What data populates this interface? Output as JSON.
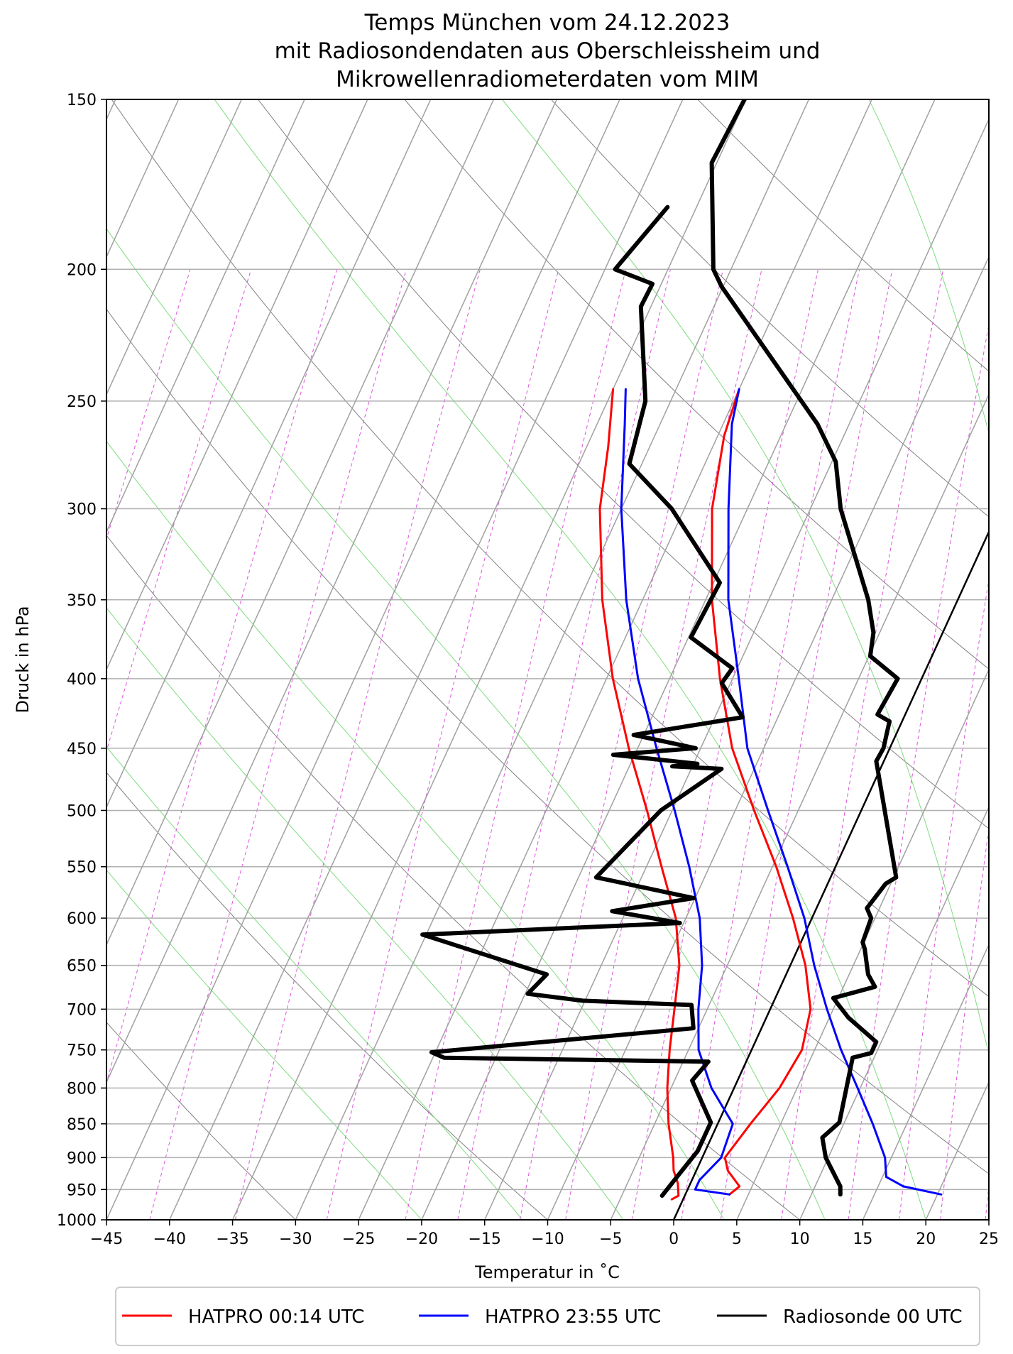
{
  "chart_data": {
    "type": "line",
    "title_lines": [
      "Temps München vom 24.12.2023",
      "mit Radiosondendaten aus Oberschleissheim und",
      "Mikrowellenradiometerdaten vom MIM"
    ],
    "xlabel": "Temperatur in ˚C",
    "ylabel": "Druck in hPa",
    "xlim": [
      -45,
      25
    ],
    "ylim": [
      1000,
      150
    ],
    "y_scale": "log",
    "skew_t": true,
    "grid": true,
    "xticks": [
      -45,
      -40,
      -35,
      -30,
      -25,
      -20,
      -15,
      -10,
      -5,
      0,
      5,
      10,
      15,
      20,
      25
    ],
    "yticks": [
      150,
      200,
      250,
      300,
      350,
      400,
      450,
      500,
      550,
      600,
      650,
      700,
      750,
      800,
      850,
      900,
      950,
      1000
    ],
    "legend_position": "bottom-outside",
    "reference_line": {
      "points": [
        [
          0,
          1000
        ],
        [
          25,
          312
        ]
      ],
      "color": "#000000"
    },
    "series": [
      {
        "name": "HATPRO 00:14 UTC",
        "color": "#ff0000",
        "profiles": [
          [
            [
              -35,
              245
            ],
            [
              -34.3,
              255
            ],
            [
              -33.3,
              270
            ],
            [
              -31.7,
              300
            ],
            [
              -28.2,
              350
            ],
            [
              -24.5,
              400
            ],
            [
              -20.7,
              450
            ],
            [
              -17,
              500
            ],
            [
              -13.8,
              550
            ],
            [
              -10.8,
              600
            ],
            [
              -8.8,
              650
            ],
            [
              -7.6,
              700
            ],
            [
              -6.5,
              750
            ],
            [
              -5.3,
              800
            ],
            [
              -3.9,
              850
            ],
            [
              -2.3,
              900
            ],
            [
              -1.8,
              920
            ],
            [
              -1.0,
              940
            ],
            [
              -0.5,
              960
            ],
            [
              -0.9,
              966
            ]
          ],
          [
            [
              -25,
              245
            ],
            [
              -24.5,
              265
            ],
            [
              -22.8,
              300
            ],
            [
              -19.5,
              350
            ],
            [
              -16,
              400
            ],
            [
              -12.5,
              450
            ],
            [
              -8.5,
              500
            ],
            [
              -4.7,
              550
            ],
            [
              -1.5,
              600
            ],
            [
              1.2,
              650
            ],
            [
              3.2,
              700
            ],
            [
              4.0,
              750
            ],
            [
              3.6,
              800
            ],
            [
              2.6,
              850
            ],
            [
              1.8,
              900
            ],
            [
              2.5,
              920
            ],
            [
              4.0,
              945
            ],
            [
              3.5,
              958
            ]
          ]
        ]
      },
      {
        "name": "HATPRO 23:55 UTC",
        "color": "#0000ff",
        "profiles": [
          [
            [
              -34,
              245
            ],
            [
              -32.8,
              260
            ],
            [
              -30,
              300
            ],
            [
              -26.3,
              350
            ],
            [
              -22.5,
              400
            ],
            [
              -18.5,
              450
            ],
            [
              -14.8,
              500
            ],
            [
              -11.6,
              550
            ],
            [
              -8.9,
              600
            ],
            [
              -7.0,
              650
            ],
            [
              -5.7,
              700
            ],
            [
              -4.2,
              750
            ],
            [
              -1.8,
              800
            ],
            [
              1.2,
              850
            ],
            [
              1.5,
              900
            ],
            [
              0.6,
              935
            ],
            [
              0.6,
              950
            ],
            [
              3.5,
              958
            ]
          ],
          [
            [
              -25,
              245
            ],
            [
              -24.3,
              260
            ],
            [
              -21.5,
              300
            ],
            [
              -18.2,
              350
            ],
            [
              -14.5,
              400
            ],
            [
              -11.3,
              450
            ],
            [
              -7.4,
              500
            ],
            [
              -3.8,
              550
            ],
            [
              -0.6,
              600
            ],
            [
              1.9,
              650
            ],
            [
              4.5,
              700
            ],
            [
              7.1,
              750
            ],
            [
              9.8,
              800
            ],
            [
              12.3,
              850
            ],
            [
              14.5,
              900
            ],
            [
              15.3,
              930
            ],
            [
              17.0,
              945
            ],
            [
              20.3,
              958
            ]
          ]
        ]
      },
      {
        "name": "Radiosonde 00 UTC",
        "color": "#000000",
        "profiles": [
          [
            [
              -37.3,
              180
            ],
            [
              -39.2,
              200
            ],
            [
              -35.7,
              205
            ],
            [
              -35.8,
              213
            ],
            [
              -32.0,
              250
            ],
            [
              -31.0,
              278
            ],
            [
              -26.0,
              300
            ],
            [
              -19.5,
              340
            ],
            [
              -19.8,
              373
            ],
            [
              -15.4,
              393
            ],
            [
              -15.7,
              403
            ],
            [
              -12.8,
              427
            ],
            [
              -20.8,
              440
            ],
            [
              -15.4,
              450
            ],
            [
              -21.7,
              455
            ],
            [
              -14.7,
              462
            ],
            [
              -16.6,
              464
            ],
            [
              -12.6,
              466
            ],
            [
              -13.2,
              472
            ],
            [
              -15.9,
              500
            ],
            [
              -18.6,
              560
            ],
            [
              -10.1,
              580
            ],
            [
              -16.1,
              593
            ],
            [
              -10.3,
              605
            ],
            [
              -30.3,
              617
            ],
            [
              -19.0,
              660
            ],
            [
              -19.8,
              682
            ],
            [
              -15.2,
              690
            ],
            [
              -6.4,
              695
            ],
            [
              -5.4,
              723
            ],
            [
              -25.3,
              753
            ],
            [
              -24.1,
              760
            ],
            [
              -3.0,
              765
            ],
            [
              -3.6,
              790
            ],
            [
              -0.6,
              848
            ],
            [
              -0.6,
              890
            ],
            [
              -1.3,
              930
            ],
            [
              -1.8,
              960
            ]
          ],
          [
            [
              -35.1,
              150
            ],
            [
              -35.4,
              167
            ],
            [
              -31.4,
              200
            ],
            [
              -30.1,
              206
            ],
            [
              -17.5,
              260
            ],
            [
              -14.7,
              277
            ],
            [
              -12.6,
              300
            ],
            [
              -7.1,
              350
            ],
            [
              -5.5,
              370
            ],
            [
              -4.9,
              385
            ],
            [
              -1.9,
              400
            ],
            [
              -2.2,
              425
            ],
            [
              -1.0,
              430
            ],
            [
              -0.5,
              450
            ],
            [
              -0.6,
              460
            ],
            [
              5.2,
              560
            ],
            [
              4.6,
              566
            ],
            [
              4.0,
              590
            ],
            [
              4.7,
              600
            ],
            [
              4.9,
              625
            ],
            [
              5.3,
              632
            ],
            [
              6.5,
              660
            ],
            [
              7.5,
              674
            ],
            [
              4.6,
              687
            ],
            [
              6.5,
              710
            ],
            [
              9.6,
              740
            ],
            [
              9.6,
              754
            ],
            [
              8.3,
              760
            ],
            [
              9.6,
              848
            ],
            [
              8.8,
              870
            ],
            [
              9.8,
              900
            ],
            [
              12.0,
              945
            ],
            [
              12.3,
              958
            ]
          ]
        ]
      }
    ]
  }
}
